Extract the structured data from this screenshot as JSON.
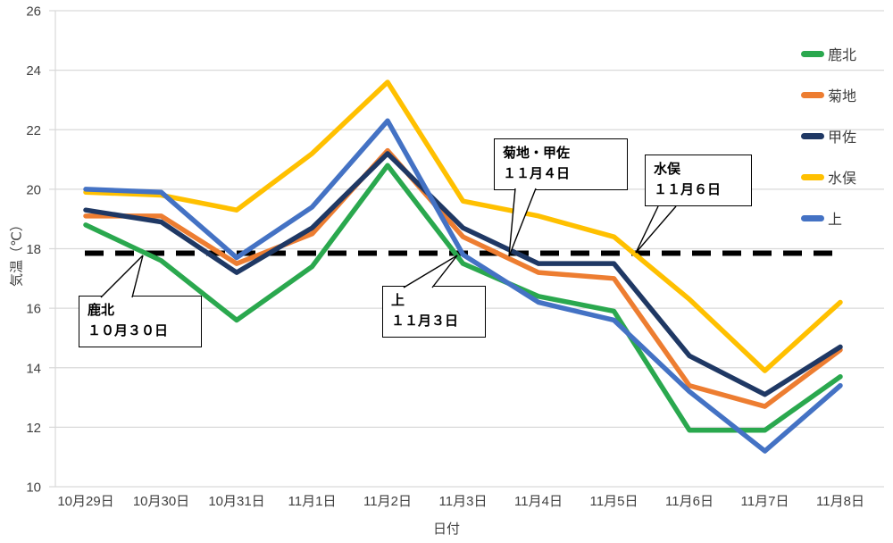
{
  "chart_data": {
    "type": "line",
    "title": "",
    "xlabel": "日付",
    "ylabel": "気温（℃）",
    "ylim": [
      10,
      26
    ],
    "ytick_step": 2,
    "grid": "horizontal-only",
    "legend_position": "right",
    "categories": [
      "10月29日",
      "10月30日",
      "10月31日",
      "11月1日",
      "11月2日",
      "11月3日",
      "11月4日",
      "11月5日",
      "11月6日",
      "11月7日",
      "11月8日"
    ],
    "series": [
      {
        "name": "鹿北",
        "color": "#2aa84e",
        "values": [
          18.8,
          17.6,
          15.6,
          17.4,
          20.8,
          17.5,
          16.4,
          15.9,
          11.9,
          11.9,
          13.7
        ]
      },
      {
        "name": "菊地",
        "color": "#ed7d31",
        "values": [
          19.1,
          19.1,
          17.5,
          18.5,
          21.3,
          18.4,
          17.2,
          17.0,
          13.4,
          12.7,
          14.6
        ]
      },
      {
        "name": "甲佐",
        "color": "#1f3864",
        "values": [
          19.3,
          18.9,
          17.2,
          18.7,
          21.2,
          18.7,
          17.5,
          17.5,
          14.4,
          13.1,
          14.7
        ]
      },
      {
        "name": "水俣",
        "color": "#ffc000",
        "values": [
          19.9,
          19.8,
          19.3,
          21.2,
          23.6,
          19.6,
          19.1,
          18.4,
          16.3,
          13.9,
          16.2
        ]
      },
      {
        "name": "上",
        "color": "#4472c4",
        "values": [
          20.0,
          19.9,
          17.7,
          19.4,
          22.3,
          17.8,
          16.2,
          15.6,
          13.2,
          11.2,
          13.4
        ]
      }
    ],
    "threshold_line": {
      "value": 17.85,
      "style": "dashed",
      "color": "#000000"
    },
    "annotations": [
      {
        "id": "kahoku",
        "line1": "鹿北",
        "line2": "１０月３０日",
        "target_date": "10月30日"
      },
      {
        "id": "kami",
        "line1": "上",
        "line2": "１１月３日",
        "target_date": "11月3日"
      },
      {
        "id": "kikuchi",
        "line1": "菊地・甲佐",
        "line2": "１１月４日",
        "target_date": "11月4日"
      },
      {
        "id": "minamata",
        "line1": "水俣",
        "line2": "１１月６日",
        "target_date": "11月6日"
      }
    ],
    "colors": {
      "gridline": "#d9d9d9",
      "tick_text": "#404040",
      "threshold": "#000000"
    }
  }
}
